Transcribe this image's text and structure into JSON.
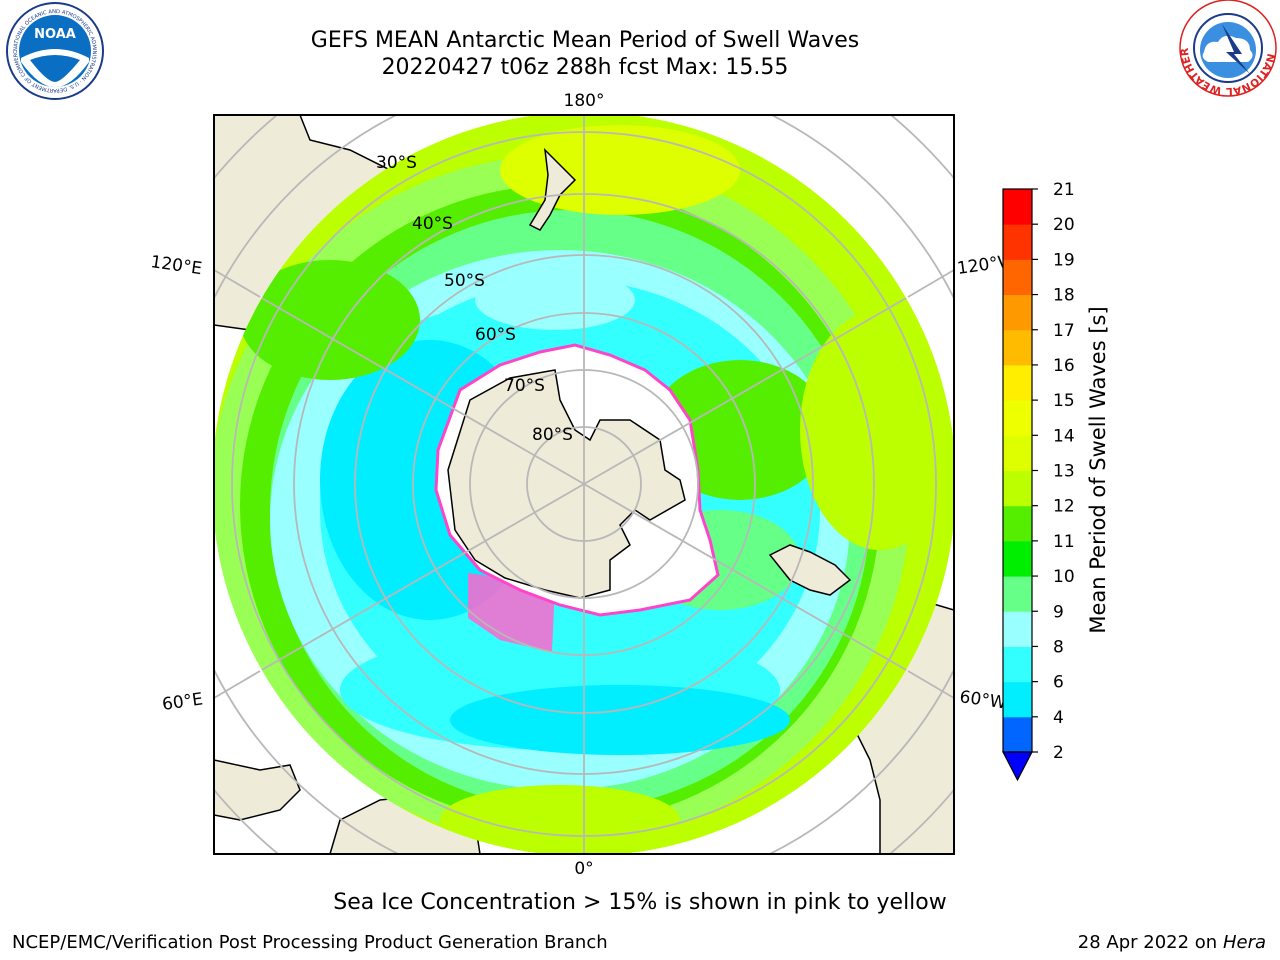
{
  "header": {
    "title_line1": "GEFS MEAN Antarctic Mean Period of Swell Waves",
    "title_line2": "20220427 t06z 288h fcst   Max: 15.55"
  },
  "logos": {
    "noaa": {
      "text": "NOAA",
      "ring_text": "NATIONAL OCEANIC AND ATMOSPHERIC ADMINISTRATION · U.S. DEPARTMENT OF COMMERCE ·"
    },
    "nws": {
      "ring_text": "NATIONAL WEATHER SERVICE"
    }
  },
  "map": {
    "longitude_labels": {
      "top": "180°",
      "bottom": "0°",
      "upper_left": "120°E",
      "upper_right": "120°W",
      "lower_left": "60°E",
      "lower_right": "60°W"
    },
    "latitude_labels": [
      "30°S",
      "40°S",
      "50°S",
      "60°S",
      "70°S",
      "80°S"
    ],
    "colors": {
      "land": "#efebd9",
      "ice_shelf": "#ffffff",
      "graticule": "#b8b8b8",
      "sea_ice": "#ff66cc"
    }
  },
  "colorbar": {
    "label": "Mean Period of Swell Waves [s]",
    "ticks": [
      "2",
      "4",
      "6",
      "8",
      "9",
      "10",
      "11",
      "12",
      "13",
      "14",
      "15",
      "16",
      "17",
      "18",
      "19",
      "20",
      "21"
    ],
    "colors": [
      "#0066ff",
      "#00eeff",
      "#33ffff",
      "#99ffff",
      "#66ff88",
      "#00ee00",
      "#55ee00",
      "#bbff00",
      "#ddff00",
      "#eeff00",
      "#ffee00",
      "#ffbb00",
      "#ff9900",
      "#ff6600",
      "#ff3300",
      "#ff0000"
    ],
    "under_color": "#0000ff"
  },
  "footer": {
    "ice_note": "Sea Ice Concentration > 15% is shown in pink to yellow",
    "credit": "NCEP/EMC/Verification Post Processing Product Generation Branch",
    "date_prefix": "28 Apr 2022 on",
    "machine": "Hera"
  }
}
